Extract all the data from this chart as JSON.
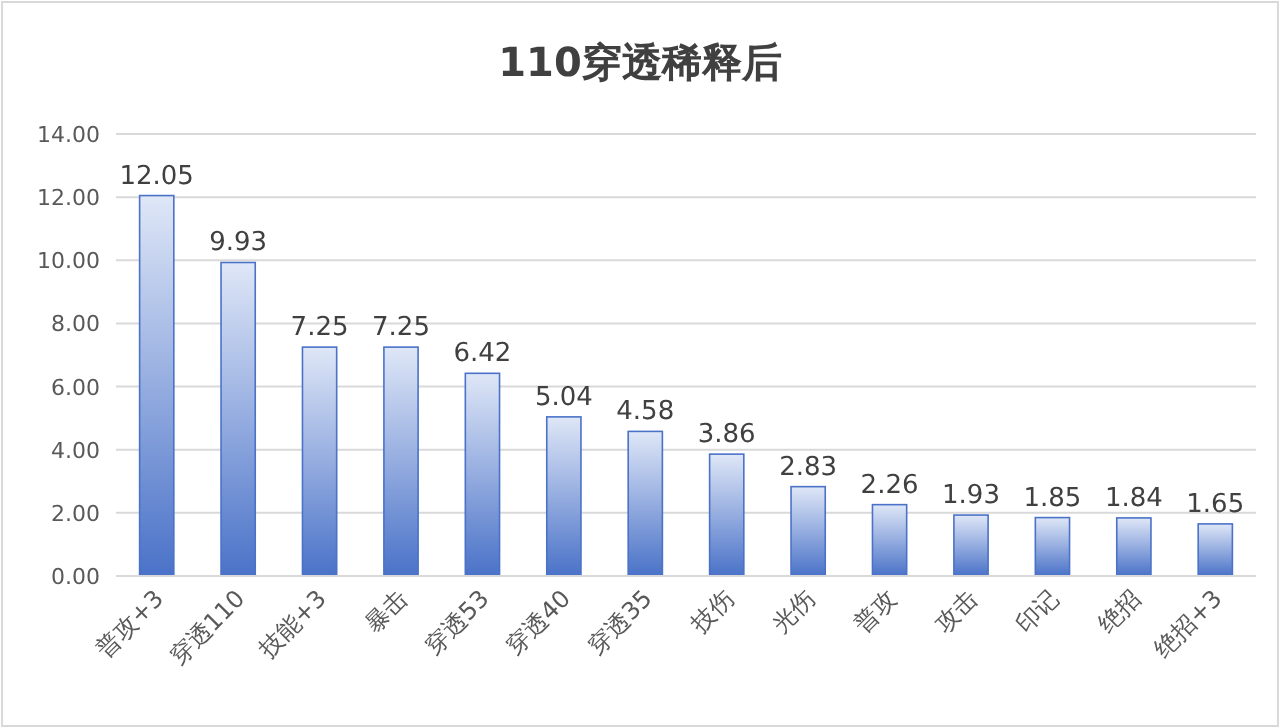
{
  "chart_data": {
    "type": "bar",
    "title": "110穿透稀释后",
    "categories": [
      "普攻+3",
      "穿透110",
      "技能+3",
      "暴击",
      "穿透53",
      "穿透40",
      "穿透35",
      "技伤",
      "光伤",
      "普攻",
      "攻击",
      "印记",
      "绝招",
      "绝招+3"
    ],
    "values": [
      12.05,
      9.93,
      7.25,
      7.25,
      6.42,
      5.04,
      4.58,
      3.86,
      2.83,
      2.26,
      1.93,
      1.85,
      1.84,
      1.65
    ],
    "color": "#4a72c8",
    "ylim": [
      0,
      14
    ],
    "yticks": [
      {
        "value": 0,
        "label": "0.00"
      },
      {
        "value": 2,
        "label": "2.00"
      },
      {
        "value": 4,
        "label": "4.00"
      },
      {
        "value": 6,
        "label": "6.00"
      },
      {
        "value": 8,
        "label": "8.00"
      },
      {
        "value": 10,
        "label": "10.00"
      },
      {
        "value": 12,
        "label": "12.00"
      },
      {
        "value": 14,
        "label": "14.00"
      }
    ],
    "grid": "y",
    "data_labels": true
  }
}
